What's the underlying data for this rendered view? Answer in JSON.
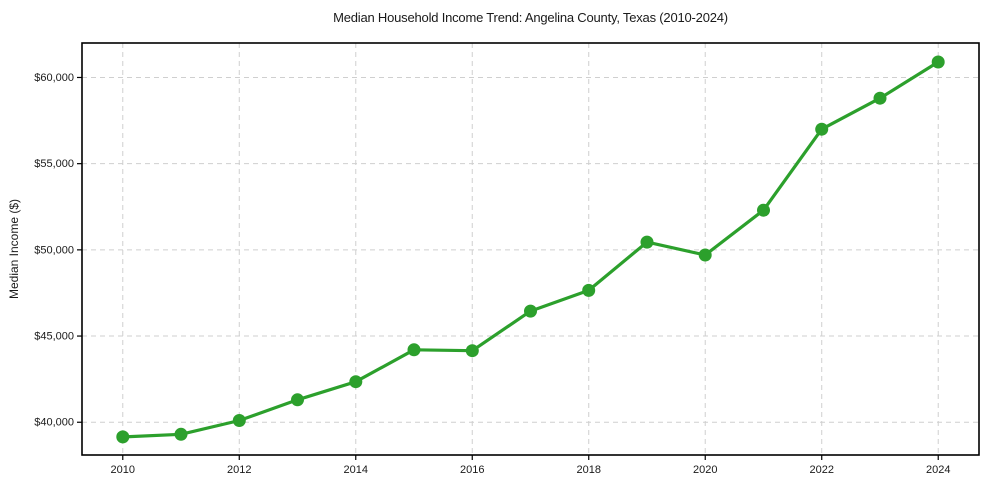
{
  "chart_data": {
    "type": "line",
    "title": "Median Household Income Trend: Angelina County, Texas (2010-2024)",
    "xlabel": "",
    "ylabel": "Median Income ($)",
    "series_name": "Median household income",
    "x": [
      2010,
      2011,
      2012,
      2013,
      2014,
      2015,
      2016,
      2017,
      2018,
      2019,
      2020,
      2021,
      2022,
      2023,
      2024
    ],
    "values": [
      39150,
      39300,
      40100,
      41300,
      42350,
      44200,
      44150,
      46450,
      47650,
      50450,
      49700,
      52300,
      57000,
      58800,
      60900
    ],
    "xlim": [
      2009.3,
      2024.7
    ],
    "ylim": [
      38100,
      62000
    ],
    "xticks": [
      2010,
      2012,
      2014,
      2016,
      2018,
      2020,
      2022,
      2024
    ],
    "xtick_labels": [
      "2010",
      "2012",
      "2014",
      "2016",
      "2018",
      "2020",
      "2022",
      "2024"
    ],
    "yticks": [
      40000,
      45000,
      50000,
      55000,
      60000
    ],
    "ytick_labels": [
      "$40,000",
      "$45,000",
      "$50,000",
      "$55,000",
      "$60,000"
    ],
    "grid": true,
    "grid_style": "dashed",
    "legend": null,
    "colors": {
      "line": "#2ca02c",
      "marker": "#2ca02c",
      "grid": "#cfcfcf",
      "frame": "#000000",
      "background": "#ffffff"
    },
    "marker": "circle"
  }
}
